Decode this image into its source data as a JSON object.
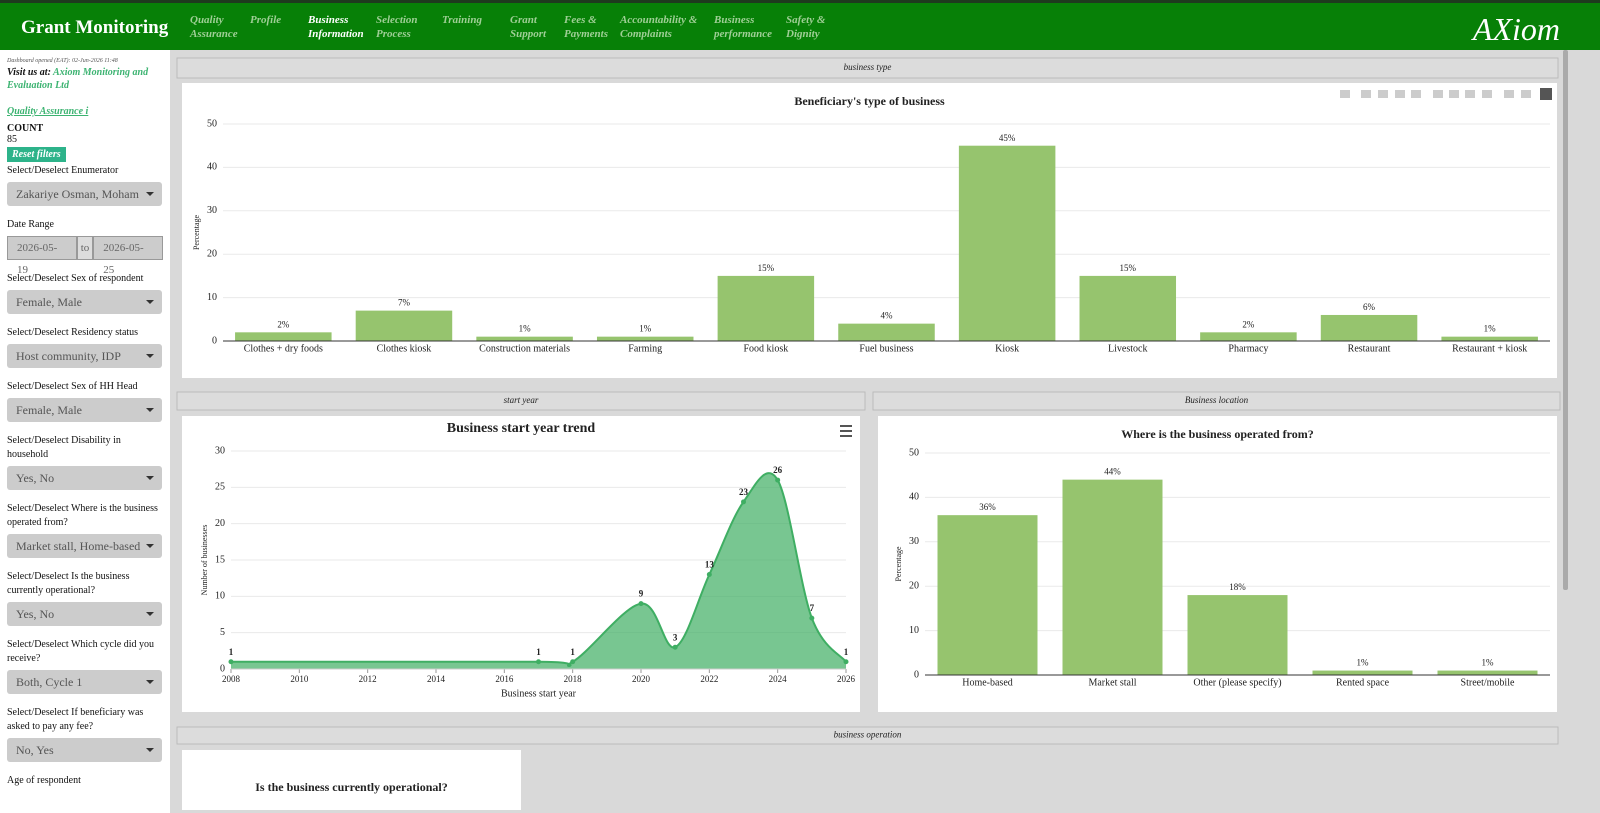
{
  "header": {
    "title": "Grant Monitoring",
    "nav": [
      "Quality Assurance",
      "Profile",
      "Business Information",
      "Selection Process",
      "Training",
      "Grant Support",
      "Fees & Payments",
      "Accountability & Complaints",
      "Business performance",
      "Safety & Dignity"
    ],
    "active": 2,
    "logo": "AXiom"
  },
  "sidebar": {
    "opened": "Dashboard opened (EAT): 02-Jun-2026 11:48",
    "visit": "Visit us at:",
    "company": "Axiom Monitoring and Evaluation Ltd",
    "section": "Quality Assurance i",
    "count_label": "COUNT",
    "count": 85,
    "reset": "Reset filters",
    "enumerator": {
      "label": "Select/Deselect Enumerator",
      "value": "Zakariye Osman, Moham"
    },
    "date_range": {
      "label": "Date Range",
      "start": "2026-05-19",
      "to": "to",
      "end": "2026-05-25"
    },
    "filters": [
      {
        "label": "Select/Deselect Sex of respondent",
        "value": "Female, Male"
      },
      {
        "label": "Select/Deselect Residency status",
        "value": "Host community, IDP"
      },
      {
        "label": "Select/Deselect Sex of HH Head",
        "value": "Female, Male"
      },
      {
        "label": "Select/Deselect Disability in household",
        "value": "Yes, No"
      },
      {
        "label": "Select/Deselect Where is the business operated from?",
        "value": "Market stall, Home-based"
      },
      {
        "label": "Select/Deselect Is the business currently operational?",
        "value": "Yes, No"
      },
      {
        "label": "Select/Deselect Which cycle did you receive?",
        "value": "Both, Cycle 1"
      },
      {
        "label": "Select/Deselect If beneficiary was asked to pay any fee?",
        "value": "No, Yes"
      }
    ],
    "last_label": "Age of respondent"
  },
  "panels": [
    {
      "title": "business type",
      "chart": {
        "type": "bar",
        "title": "Beneficiary's type of business",
        "ylabel": "Percentage",
        "categories": [
          "Clothes + dry foods",
          "Clothes kiosk",
          "Construction materials",
          "Farming",
          "Food kiosk",
          "Fuel business",
          "Kiosk",
          "Livestock",
          "Pharmacy",
          "Restaurant",
          "Restaurant + kiosk"
        ],
        "values": [
          2,
          7,
          1,
          1,
          15,
          4,
          45,
          15,
          2,
          6,
          1
        ],
        "value_labels": [
          "2%",
          "7%",
          "1%",
          "1%",
          "15%",
          "4%",
          "45%",
          "15%",
          "2%",
          "6%",
          "1%"
        ],
        "color": "#96c46e",
        "ylim": [
          0,
          50
        ],
        "yticks": [
          0,
          10,
          20,
          30,
          40,
          50
        ],
        "grid": true
      }
    },
    {
      "title": "start year",
      "chart": {
        "type": "area",
        "title": "Business start year trend",
        "xlabel": "Business start year",
        "ylabel": "Number of businesses",
        "x": [
          2008,
          2017,
          2018,
          2020,
          2021,
          2022,
          2023,
          2024,
          2025,
          2026
        ],
        "values": [
          1,
          1,
          1,
          9,
          3,
          13,
          23,
          26,
          7,
          1
        ],
        "color": "#3fae63",
        "xlim": [
          2008,
          2026
        ],
        "xticks": [
          2008,
          2010,
          2012,
          2014,
          2016,
          2018,
          2020,
          2022,
          2024,
          2026
        ],
        "ylim": [
          0,
          30
        ],
        "yticks": [
          0,
          5,
          10,
          15,
          20,
          25,
          30
        ],
        "grid": true
      }
    },
    {
      "title": "Business location",
      "chart": {
        "type": "bar",
        "title": "Where is the business operated from?",
        "ylabel": "Percentage",
        "categories": [
          "Home-based",
          "Market stall",
          "Other (please specify)",
          "Rented space",
          "Street/mobile"
        ],
        "values": [
          36,
          44,
          18,
          1,
          1
        ],
        "value_labels": [
          "36%",
          "44%",
          "18%",
          "1%",
          "1%"
        ],
        "color": "#96c46e",
        "ylim": [
          0,
          50
        ],
        "yticks": [
          0,
          10,
          20,
          30,
          40,
          50
        ],
        "grid": true
      }
    },
    {
      "title": "business operation",
      "chart": {
        "title": "Is the business currently operational?"
      }
    }
  ]
}
